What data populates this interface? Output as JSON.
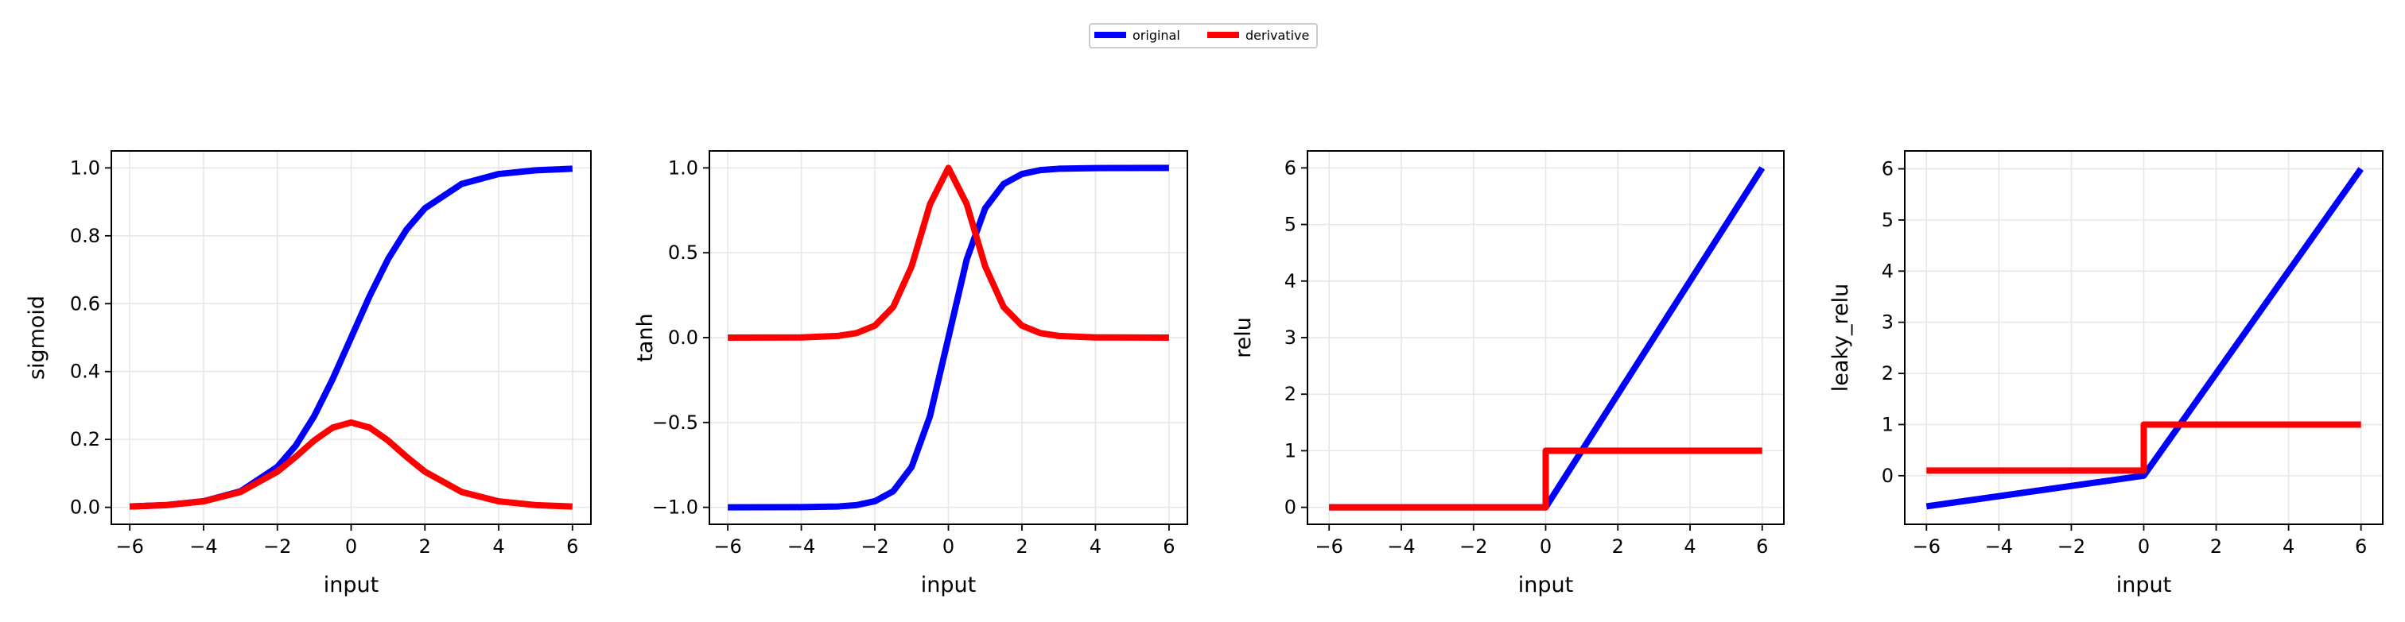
{
  "legend": {
    "items": [
      {
        "label": "original",
        "color": "#0000ff"
      },
      {
        "label": "derivative",
        "color": "#ff0000"
      }
    ]
  },
  "chart_data": [
    {
      "type": "line",
      "title": "",
      "xlabel": "input",
      "ylabel": "sigmoid",
      "xlim": [
        -6.5,
        6.5
      ],
      "ylim": [
        -0.05,
        1.05
      ],
      "xticks": [
        -6,
        -4,
        -2,
        0,
        2,
        4,
        6
      ],
      "xtick_labels": [
        "−6",
        "−4",
        "−2",
        "0",
        "2",
        "4",
        "6"
      ],
      "yticks": [
        0.0,
        0.2,
        0.4,
        0.6,
        0.8,
        1.0
      ],
      "ytick_labels": [
        "0.0",
        "0.2",
        "0.4",
        "0.6",
        "0.8",
        "1.0"
      ],
      "grid": true,
      "series": [
        {
          "name": "original",
          "color": "#0000ff",
          "x": [
            -6,
            -5,
            -4,
            -3,
            -2,
            -1.5,
            -1,
            -0.5,
            0,
            0.5,
            1,
            1.5,
            2,
            3,
            4,
            5,
            6
          ],
          "y": [
            0.0025,
            0.0067,
            0.018,
            0.047,
            0.119,
            0.182,
            0.269,
            0.378,
            0.5,
            0.622,
            0.731,
            0.818,
            0.881,
            0.953,
            0.982,
            0.993,
            0.9975
          ]
        },
        {
          "name": "derivative",
          "color": "#ff0000",
          "x": [
            -6,
            -5,
            -4,
            -3,
            -2,
            -1.5,
            -1,
            -0.5,
            0,
            0.5,
            1,
            1.5,
            2,
            3,
            4,
            5,
            6
          ],
          "y": [
            0.0025,
            0.0066,
            0.0177,
            0.0452,
            0.105,
            0.149,
            0.197,
            0.235,
            0.25,
            0.235,
            0.197,
            0.149,
            0.105,
            0.0452,
            0.0177,
            0.0066,
            0.0025
          ]
        }
      ]
    },
    {
      "type": "line",
      "title": "",
      "xlabel": "input",
      "ylabel": "tanh",
      "xlim": [
        -6.5,
        6.5
      ],
      "ylim": [
        -1.1,
        1.1
      ],
      "xticks": [
        -6,
        -4,
        -2,
        0,
        2,
        4,
        6
      ],
      "xtick_labels": [
        "−6",
        "−4",
        "−2",
        "0",
        "2",
        "4",
        "6"
      ],
      "yticks": [
        -1.0,
        -0.5,
        0.0,
        0.5,
        1.0
      ],
      "ytick_labels": [
        "−1.0",
        "−0.5",
        "0.0",
        "0.5",
        "1.0"
      ],
      "grid": true,
      "series": [
        {
          "name": "original",
          "color": "#0000ff",
          "x": [
            -6,
            -4,
            -3,
            -2.5,
            -2,
            -1.5,
            -1,
            -0.5,
            0,
            0.5,
            1,
            1.5,
            2,
            2.5,
            3,
            4,
            6
          ],
          "y": [
            -1.0,
            -0.999,
            -0.995,
            -0.987,
            -0.964,
            -0.905,
            -0.762,
            -0.462,
            0.0,
            0.462,
            0.762,
            0.905,
            0.964,
            0.987,
            0.995,
            0.999,
            1.0
          ]
        },
        {
          "name": "derivative",
          "color": "#ff0000",
          "x": [
            -6,
            -4,
            -3,
            -2.5,
            -2,
            -1.5,
            -1,
            -0.5,
            0,
            0.5,
            1,
            1.5,
            2,
            2.5,
            3,
            4,
            6
          ],
          "y": [
            0.0,
            0.0013,
            0.0099,
            0.0266,
            0.0707,
            0.181,
            0.42,
            0.786,
            1.0,
            0.786,
            0.42,
            0.181,
            0.0707,
            0.0266,
            0.0099,
            0.0013,
            0.0
          ]
        }
      ]
    },
    {
      "type": "line",
      "title": "",
      "xlabel": "input",
      "ylabel": "relu",
      "xlim": [
        -6.6,
        6.6
      ],
      "ylim": [
        -0.3,
        6.3
      ],
      "xticks": [
        -6,
        -4,
        -2,
        0,
        2,
        4,
        6
      ],
      "xtick_labels": [
        "−6",
        "−4",
        "−2",
        "0",
        "2",
        "4",
        "6"
      ],
      "yticks": [
        0,
        1,
        2,
        3,
        4,
        5,
        6
      ],
      "ytick_labels": [
        "0",
        "1",
        "2",
        "3",
        "4",
        "5",
        "6"
      ],
      "grid": true,
      "series": [
        {
          "name": "original",
          "color": "#0000ff",
          "x": [
            -6,
            0,
            6
          ],
          "y": [
            0,
            0,
            6
          ]
        },
        {
          "name": "derivative",
          "color": "#ff0000",
          "x": [
            -6,
            0,
            0,
            6
          ],
          "y": [
            0,
            0,
            1,
            1
          ]
        }
      ]
    },
    {
      "type": "line",
      "title": "",
      "xlabel": "input",
      "ylabel": "leaky_relu",
      "xlim": [
        -6.6,
        6.6
      ],
      "ylim": [
        -0.95,
        6.35
      ],
      "xticks": [
        -6,
        -4,
        -2,
        0,
        2,
        4,
        6
      ],
      "xtick_labels": [
        "−6",
        "−4",
        "−2",
        "0",
        "2",
        "4",
        "6"
      ],
      "yticks": [
        0,
        1,
        2,
        3,
        4,
        5,
        6
      ],
      "ytick_labels": [
        "0",
        "1",
        "2",
        "3",
        "4",
        "5",
        "6"
      ],
      "grid": true,
      "series": [
        {
          "name": "original",
          "color": "#0000ff",
          "x": [
            -6,
            0,
            6
          ],
          "y": [
            -0.6,
            0,
            6
          ]
        },
        {
          "name": "derivative",
          "color": "#ff0000",
          "x": [
            -6,
            0,
            0,
            6
          ],
          "y": [
            0.1,
            0.1,
            1,
            1
          ]
        }
      ]
    }
  ]
}
